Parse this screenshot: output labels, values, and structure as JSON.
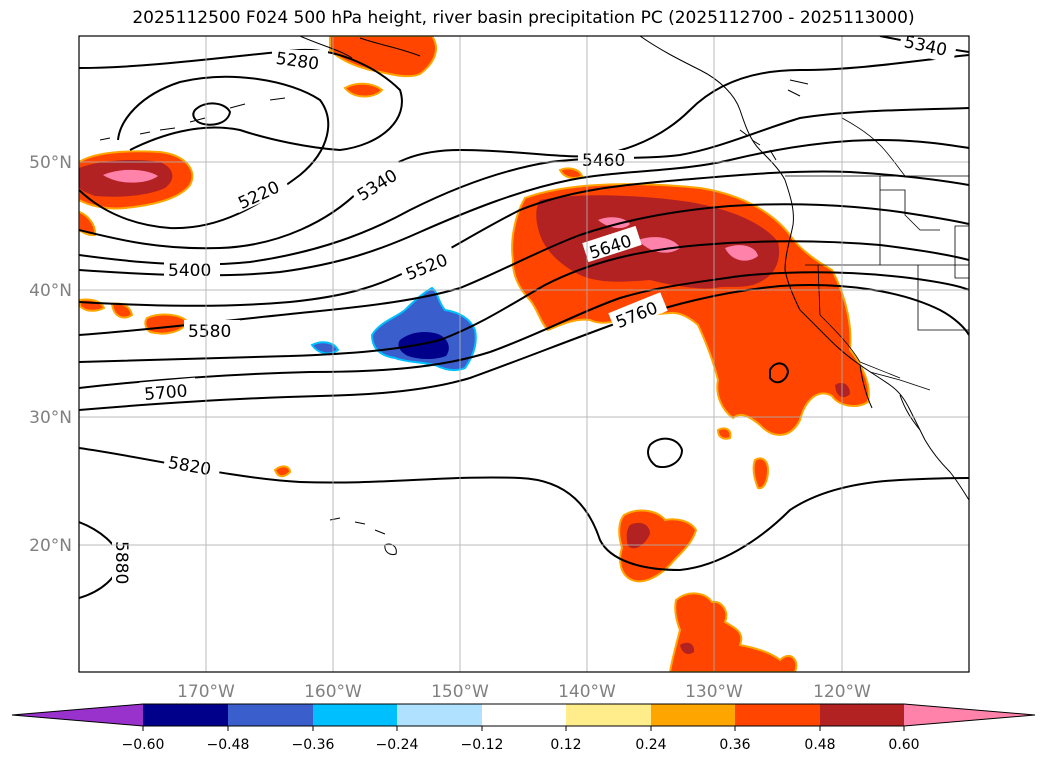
{
  "title": "2025112500 F024 500 hPa height, river basin precipitation PC (2025112700 - 2025113000)",
  "lat_labels": [
    "50°N",
    "40°N",
    "30°N",
    "20°N"
  ],
  "lon_labels": [
    "170°W",
    "160°W",
    "150°W",
    "140°W",
    "130°W",
    "120°W"
  ],
  "contour_labels": [
    "5280",
    "5220",
    "5340",
    "5460",
    "5400",
    "5520",
    "5640",
    "5580",
    "5760",
    "5700",
    "5820",
    "5880",
    "5340"
  ],
  "colorbar": {
    "ticks": [
      "−0.60",
      "−0.48",
      "−0.36",
      "−0.24",
      "−0.12",
      "0.12",
      "0.24",
      "0.36",
      "0.48",
      "0.60"
    ],
    "colors": [
      "#9932cc",
      "#00008b",
      "#3a5fcd",
      "#00bfff",
      "#b0e2ff",
      "#ffffff",
      "#ffec8b",
      "#ffa500",
      "#ff4500",
      "#b22222",
      "#ff82ab"
    ]
  }
}
